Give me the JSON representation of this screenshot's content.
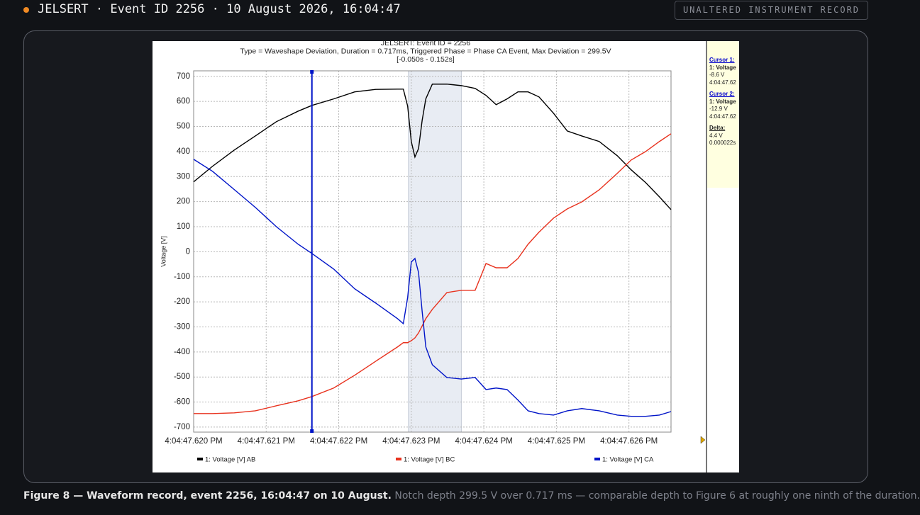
{
  "header": {
    "title": "JELSERT · Event ID 2256 · 10 August 2026, 16:04:47",
    "badge": "UNALTERED INSTRUMENT RECORD"
  },
  "cursor_panel": {
    "cursor1": {
      "title": "Cursor 1:",
      "channel": "1: Voltage",
      "value": "-8.6 V",
      "time": "4:04:47.62"
    },
    "cursor2": {
      "title": "Cursor 2:",
      "channel": "1: Voltage",
      "value": "-12.9 V",
      "time": "4:04:47.62"
    },
    "delta": {
      "title": "Delta:",
      "value": "4.4 V",
      "time": "0.000022s"
    }
  },
  "caption": {
    "lead": "Figure 8 — Waveform record, event 2256, 16:04:47 on 10 August.",
    "text": "Notch depth 299.5 V over 0.717 ms — comparable depth to Figure 6 at roughly one ninth of the duration."
  },
  "chart_data": {
    "type": "line",
    "title_lines": [
      "JELSERT: Event ID = 2256",
      "Type = Waveshape Deviation, Duration = 0.717ms, Triggered Phase = Phase CA Event, Max Deviation = 299.5V",
      "[-0.050s - 0.152s]"
    ],
    "y_label": "Voltage [V]",
    "grid": true,
    "x": [
      47.62,
      47.62026,
      47.62056,
      47.62085,
      47.62114,
      47.62144,
      47.62163,
      47.62193,
      47.62222,
      47.62251,
      47.62281,
      47.62289,
      47.62295,
      47.623,
      47.62305,
      47.6231,
      47.62315,
      47.6232,
      47.62329,
      47.62349,
      47.62369,
      47.62388,
      47.62403,
      47.62417,
      47.62432,
      47.62447,
      47.62461,
      47.62476,
      47.62496,
      47.62515,
      47.62535,
      47.62559,
      47.62584,
      47.62603,
      47.62623,
      47.62642,
      47.62658
    ],
    "series": [
      {
        "name": "1: Voltage [V] AB",
        "color": "#000000",
        "values": [
          279,
          341,
          406,
          462,
          519,
          561,
          584,
          610,
          638,
          648,
          649,
          649,
          581,
          440,
          378,
          412,
          525,
          610,
          669,
          669,
          663,
          652,
          624,
          587,
          610,
          638,
          638,
          618,
          553,
          482,
          462,
          440,
          383,
          327,
          276,
          219,
          168
        ]
      },
      {
        "name": "1: Voltage [V] BC",
        "color": "#e8321e",
        "values": [
          -646,
          -646,
          -643,
          -635,
          -615,
          -595,
          -578,
          -544,
          -493,
          -437,
          -380,
          -363,
          -363,
          -355,
          -344,
          -324,
          -296,
          -267,
          -230,
          -163,
          -154,
          -154,
          -47,
          -64,
          -64,
          -27,
          30,
          78,
          134,
          171,
          199,
          247,
          313,
          366,
          400,
          440,
          471
        ]
      },
      {
        "name": "1: Voltage [V] CA",
        "color": "#0014c8",
        "values": [
          369,
          321,
          248,
          177,
          100,
          30,
          -7,
          -69,
          -148,
          -205,
          -267,
          -287,
          -182,
          -41,
          -27,
          -83,
          -239,
          -380,
          -451,
          -502,
          -508,
          -502,
          -550,
          -544,
          -550,
          -592,
          -635,
          -646,
          -652,
          -635,
          -626,
          -635,
          -652,
          -657,
          -657,
          -652,
          -638
        ]
      }
    ],
    "xlim": [
      47.62,
      47.62658
    ],
    "ylim": [
      -720,
      722
    ],
    "xticks": [
      {
        "value": 47.62,
        "label": "4:04:47.620 PM"
      },
      {
        "value": 47.621,
        "label": "4:04:47.621 PM"
      },
      {
        "value": 47.622,
        "label": "4:04:47.622 PM"
      },
      {
        "value": 47.623,
        "label": "4:04:47.623 PM"
      },
      {
        "value": 47.624,
        "label": "4:04:47.624 PM"
      },
      {
        "value": 47.625,
        "label": "4:04:47.625 PM"
      },
      {
        "value": 47.626,
        "label": "4:04:47.626 PM"
      }
    ],
    "yticks": [
      700,
      600,
      500,
      400,
      300,
      200,
      100,
      0,
      -100,
      -200,
      -300,
      -400,
      -500,
      -600,
      -700
    ],
    "highlight_xlim": [
      47.62296,
      47.62369
    ],
    "cursor_x": 47.62163
  }
}
